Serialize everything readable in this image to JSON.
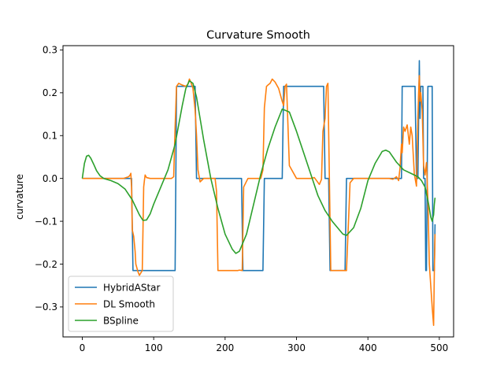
{
  "chart_data": {
    "type": "line",
    "title": "Curvature Smooth",
    "xlabel": "",
    "ylabel": "curvature",
    "xlim": [
      -27,
      520
    ],
    "ylim": [
      -0.37,
      0.31
    ],
    "xticks": [
      0,
      100,
      200,
      300,
      400,
      500
    ],
    "yticks": [
      -0.3,
      -0.2,
      -0.1,
      0.0,
      0.1,
      0.2,
      0.3
    ],
    "ytick_labels": [
      "−0.3",
      "−0.2",
      "−0.1",
      "0.0",
      "0.1",
      "0.2",
      "0.3"
    ],
    "grid": false,
    "legend": "lower-left",
    "series": [
      {
        "name": "HybridAStar",
        "color": "#1f77b4",
        "x": [
          0,
          69,
          71,
          130,
          132,
          158,
          160,
          223,
          225,
          253,
          255,
          280,
          282,
          338,
          340,
          345,
          347,
          368,
          370,
          447,
          448,
          451,
          458,
          462,
          466,
          468,
          470,
          471,
          472,
          473,
          474,
          477,
          478,
          480,
          481,
          482,
          483,
          484,
          490,
          491,
          493,
          494
        ],
        "y": [
          0,
          0,
          -0.215,
          -0.215,
          0.215,
          0.215,
          0,
          0,
          -0.215,
          -0.215,
          0,
          0,
          0.215,
          0.215,
          0,
          0,
          -0.215,
          -0.215,
          0,
          0,
          0.215,
          0.215,
          0.215,
          0.215,
          0.215,
          0,
          0,
          0.14,
          0.275,
          0.14,
          0.215,
          0.215,
          0,
          0,
          -0.215,
          -0.215,
          0,
          0.215,
          0.215,
          -0.215,
          -0.215,
          -0.107
        ]
      },
      {
        "name": "DL Smooth",
        "color": "#ff7f0e",
        "x": [
          0,
          58,
          65,
          67,
          68,
          69,
          70,
          72,
          74,
          75,
          78,
          80,
          84,
          85,
          86,
          87,
          88,
          90,
          95,
          100,
          105,
          110,
          125,
          128,
          130,
          132,
          135,
          140,
          145,
          148,
          150,
          152,
          155,
          158,
          160,
          162,
          165,
          170,
          175,
          180,
          186,
          188,
          190,
          195,
          200,
          210,
          218,
          220,
          224,
          226,
          232,
          240,
          250,
          253,
          255,
          258,
          260,
          263,
          266,
          270,
          275,
          280,
          282,
          284,
          286,
          290,
          300,
          310,
          320,
          325,
          332,
          335,
          337,
          340,
          342,
          344,
          346,
          348,
          350,
          360,
          366,
          368,
          370,
          375,
          380,
          390,
          400,
          410,
          420,
          430,
          435,
          440,
          443,
          445,
          447,
          448,
          450,
          452,
          455,
          458,
          460,
          462,
          465,
          468,
          470,
          471,
          472,
          473,
          474,
          476,
          478,
          480,
          482,
          484,
          486,
          488,
          490,
          492,
          493,
          494
        ],
        "y": [
          0,
          0,
          0.004,
          0.008,
          0.012,
          -0.02,
          -0.12,
          -0.135,
          -0.17,
          -0.2,
          -0.218,
          -0.226,
          -0.215,
          -0.12,
          -0.02,
          -0.005,
          0.008,
          0.002,
          0,
          0,
          0,
          0,
          0,
          0.004,
          0.12,
          0.215,
          0.222,
          0.218,
          0.215,
          0.22,
          0.232,
          0.225,
          0.21,
          0.16,
          0.1,
          0.02,
          -0.008,
          0,
          0,
          0,
          0,
          -0.03,
          -0.215,
          -0.215,
          -0.215,
          -0.215,
          -0.215,
          -0.214,
          -0.215,
          -0.02,
          0,
          0,
          0,
          0.02,
          0.165,
          0.215,
          0.218,
          0.222,
          0.232,
          0.225,
          0.21,
          0.18,
          0.17,
          0.215,
          0.22,
          0.03,
          0,
          0,
          0,
          0.002,
          -0.014,
          -0.002,
          0.11,
          0.14,
          0.215,
          0.222,
          0.005,
          -0.215,
          -0.215,
          -0.215,
          -0.215,
          -0.215,
          -0.215,
          -0.01,
          0,
          0,
          0,
          0,
          0,
          0,
          -0.002,
          0.004,
          -0.005,
          0.025,
          0.08,
          0.06,
          0.12,
          0.11,
          0.125,
          0.08,
          0.12,
          0.1,
          0.01,
          -0.018,
          0.14,
          0.2,
          0.24,
          0.18,
          0.2,
          0.16,
          0.03,
          0.008,
          0.037,
          -0.05,
          -0.2,
          -0.25,
          -0.3,
          -0.343,
          -0.22,
          -0.13
        ]
      },
      {
        "name": "BSpline",
        "color": "#2ca02c",
        "x": [
          0,
          3,
          6,
          9,
          12,
          16,
          20,
          25,
          30,
          40,
          50,
          60,
          70,
          80,
          85,
          90,
          95,
          100,
          110,
          120,
          130,
          140,
          145,
          150,
          155,
          160,
          170,
          180,
          190,
          200,
          210,
          215,
          220,
          230,
          240,
          250,
          260,
          270,
          280,
          290,
          300,
          310,
          320,
          330,
          340,
          350,
          360,
          365,
          370,
          380,
          390,
          400,
          410,
          420,
          425,
          430,
          440,
          450,
          460,
          470,
          475,
          480,
          485,
          488,
          490,
          492,
          493,
          494
        ],
        "y": [
          0,
          0.035,
          0.052,
          0.054,
          0.047,
          0.033,
          0.018,
          0.006,
          0,
          -0.005,
          -0.012,
          -0.025,
          -0.05,
          -0.085,
          -0.098,
          -0.097,
          -0.083,
          -0.06,
          -0.02,
          0.02,
          0.08,
          0.17,
          0.21,
          0.228,
          0.222,
          0.19,
          0.09,
          0,
          -0.07,
          -0.13,
          -0.165,
          -0.175,
          -0.17,
          -0.13,
          -0.06,
          0.01,
          0.07,
          0.12,
          0.162,
          0.155,
          0.11,
          0.06,
          0.01,
          -0.04,
          -0.075,
          -0.1,
          -0.12,
          -0.13,
          -0.133,
          -0.115,
          -0.07,
          -0.005,
          0.035,
          0.063,
          0.066,
          0.062,
          0.038,
          0.02,
          0.012,
          0.004,
          -0.005,
          -0.02,
          -0.06,
          -0.09,
          -0.1,
          -0.085,
          -0.06,
          -0.045
        ]
      }
    ]
  }
}
